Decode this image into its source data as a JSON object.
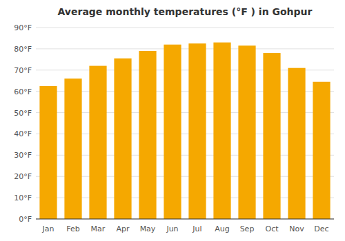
{
  "chart_data": {
    "type": "bar",
    "title": "Average monthly temperatures (°F ) in Gohpur",
    "categories": [
      "Jan",
      "Feb",
      "Mar",
      "Apr",
      "May",
      "Jun",
      "Jul",
      "Aug",
      "Sep",
      "Oct",
      "Nov",
      "Dec"
    ],
    "values": [
      62.5,
      66,
      72,
      75.5,
      79,
      82,
      82.5,
      83,
      81.5,
      78,
      71,
      64.5
    ],
    "color": "#F5A800",
    "ylim": [
      0,
      90
    ],
    "yticks": [
      {
        "value": 0,
        "label": "0°F"
      },
      {
        "value": 10,
        "label": "10°F"
      },
      {
        "value": 20,
        "label": "20°F"
      },
      {
        "value": 30,
        "label": "30°F"
      },
      {
        "value": 40,
        "label": "40°F"
      },
      {
        "value": 50,
        "label": "50°F"
      },
      {
        "value": 60,
        "label": "60°F"
      },
      {
        "value": 70,
        "label": "70°F"
      },
      {
        "value": 80,
        "label": "80°F"
      },
      {
        "value": 90,
        "label": "90°F"
      }
    ],
    "grid": true
  }
}
